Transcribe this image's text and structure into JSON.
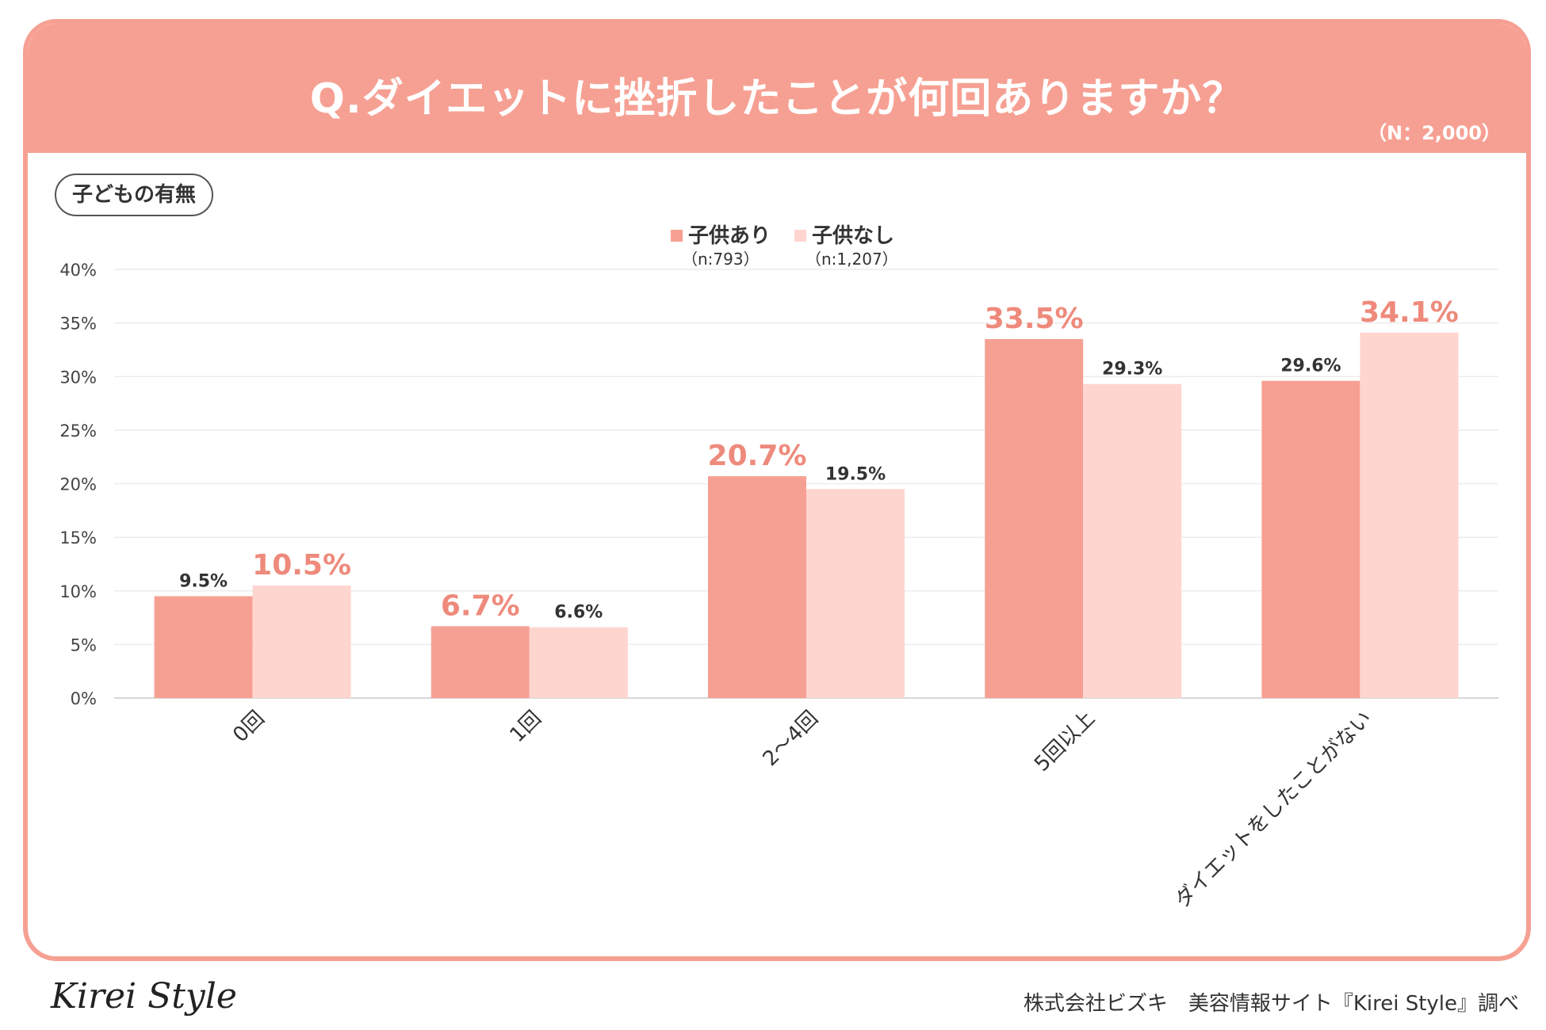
{
  "header": {
    "title": "Q.ダイエットに挫折したことが何回ありますか？",
    "sample_size": "（N：2,000）"
  },
  "segment_label": "子どもの有無",
  "colors": {
    "accent": "#f6a093",
    "series_with_children": "#f6a093",
    "series_without_children": "#ffd5d0",
    "highlight_label": "#ee8a7c",
    "normal_label": "#333333"
  },
  "chart_data": {
    "type": "bar",
    "title": "Q.ダイエットに挫折したことが何回ありますか？",
    "xlabel": "",
    "ylabel": "",
    "ylim": [
      0,
      40
    ],
    "y_ticks": [
      0,
      5,
      10,
      15,
      20,
      25,
      30,
      35,
      40
    ],
    "y_tick_labels": [
      "0%",
      "5%",
      "10%",
      "15%",
      "20%",
      "25%",
      "30%",
      "35%",
      "40%"
    ],
    "grid": true,
    "legend_position": "top-center",
    "categories": [
      "0回",
      "1回",
      "2～4回",
      "5回以上",
      "ダイエットをしたことがない"
    ],
    "series": [
      {
        "name": "子供あり",
        "sub": "（n:793）",
        "values": [
          9.5,
          6.7,
          20.7,
          33.5,
          29.6
        ],
        "labels": [
          "9.5%",
          "6.7%",
          "20.7%",
          "33.5%",
          "29.6%"
        ],
        "highlight": [
          false,
          true,
          true,
          true,
          false
        ]
      },
      {
        "name": "子供なし",
        "sub": "（n:1,207）",
        "values": [
          10.5,
          6.6,
          19.5,
          29.3,
          34.1
        ],
        "labels": [
          "10.5%",
          "6.6%",
          "19.5%",
          "29.3%",
          "34.1%"
        ],
        "highlight": [
          true,
          false,
          false,
          false,
          true
        ]
      }
    ]
  },
  "footer": {
    "logo": "Kirei Style",
    "credit": "株式会社ビズキ　美容情報サイト『Kirei Style』調べ"
  }
}
